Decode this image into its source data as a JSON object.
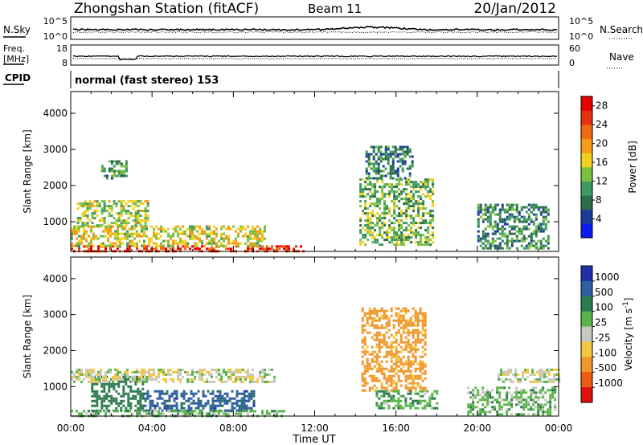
{
  "header": {
    "station": "Zhongshan Station (fitACF)",
    "beam": "Beam 11",
    "date": "20/Jan/2012"
  },
  "top_panels": {
    "nsky_label": "N.Sky",
    "nsearch_label": "N.Search",
    "nsky_ticks": [
      "10^5",
      "10^0"
    ],
    "freq_label_1": "Freq.",
    "freq_label_2": "[MHz]",
    "freq_ticks": [
      "18",
      "8"
    ],
    "nave_label": "Nave",
    "nave_ticks": [
      "60",
      "0"
    ],
    "cpid_label": "CPID",
    "cpid_text": "normal (fast stereo) 153"
  },
  "colors": {
    "power_scale": [
      "#0a1cf0",
      "#1c3c9c",
      "#2d6e4a",
      "#3f9a5f",
      "#7ac142",
      "#f2d020",
      "#f59b15",
      "#ef6a10",
      "#e83010",
      "#e80000"
    ],
    "velocity_scale": [
      "#2030a8",
      "#2f5fa0",
      "#2e7a50",
      "#5ab44a",
      "#c8c8c0",
      "#f2c840",
      "#f0962a",
      "#ec5c14",
      "#e01010"
    ]
  },
  "chart_data": [
    {
      "type": "heatmap",
      "title": "",
      "panel": "power",
      "xlabel": "",
      "ylabel": "Slant Range [km]",
      "x_ticks": [
        "00:00",
        "04:00",
        "08:00",
        "12:00",
        "16:00",
        "20:00",
        "00:00"
      ],
      "xlim_hours": [
        0,
        24
      ],
      "y_ticks": [
        1000,
        2000,
        3000,
        4000
      ],
      "ylim": [
        180,
        4600
      ],
      "colorbar_label": "Power [dB]",
      "colorbar_ticks": [
        4,
        8,
        12,
        16,
        20,
        24,
        28
      ],
      "colorbar_range": [
        0,
        30
      ],
      "regions": [
        {
          "t0": 0.0,
          "t1": 11.5,
          "r0": 180,
          "r1": 350,
          "value": 26
        },
        {
          "t0": 0.0,
          "t1": 9.5,
          "r0": 350,
          "r1": 900,
          "value": 16
        },
        {
          "t0": 0.3,
          "t1": 3.8,
          "r0": 900,
          "r1": 1600,
          "value": 14
        },
        {
          "t0": 1.5,
          "t1": 2.8,
          "r0": 2200,
          "r1": 2700,
          "value": 10
        },
        {
          "t0": 14.2,
          "t1": 17.8,
          "r0": 400,
          "r1": 2200,
          "value": 12
        },
        {
          "t0": 14.5,
          "t1": 16.8,
          "r0": 2200,
          "r1": 3100,
          "value": 8
        },
        {
          "t0": 20.0,
          "t1": 23.5,
          "r0": 300,
          "r1": 1500,
          "value": 9
        }
      ]
    },
    {
      "type": "heatmap",
      "title": "",
      "panel": "velocity",
      "xlabel": "Time UT",
      "ylabel": "Slant Range [km]",
      "x_ticks": [
        "00:00",
        "04:00",
        "08:00",
        "12:00",
        "16:00",
        "20:00",
        "00:00"
      ],
      "xlim_hours": [
        0,
        24
      ],
      "y_ticks": [
        1000,
        2000,
        3000,
        4000
      ],
      "ylim": [
        180,
        4600
      ],
      "colorbar_label": "Velocity [m s^-1]",
      "colorbar_ticks": [
        "1000",
        "500",
        "100",
        "25",
        "-25",
        "-100",
        "-500",
        "-1000"
      ],
      "colorbar_range": [
        -1200,
        1200
      ],
      "regions": [
        {
          "t0": 3.5,
          "t1": 9.0,
          "r0": 300,
          "r1": 900,
          "value": 700
        },
        {
          "t0": 1.0,
          "t1": 3.5,
          "r0": 300,
          "r1": 1300,
          "value": 300
        },
        {
          "t0": 0.0,
          "t1": 10.5,
          "r0": 180,
          "r1": 350,
          "value": 60
        },
        {
          "t0": 0.0,
          "t1": 10.0,
          "r0": 1150,
          "r1": 1500,
          "value": 0
        },
        {
          "t0": 14.3,
          "t1": 17.5,
          "r0": 900,
          "r1": 3200,
          "value": -150
        },
        {
          "t0": 15.0,
          "t1": 18.0,
          "r0": 400,
          "r1": 900,
          "value": 80
        },
        {
          "t0": 19.5,
          "t1": 23.8,
          "r0": 200,
          "r1": 1000,
          "value": 60
        },
        {
          "t0": 21.0,
          "t1": 24.0,
          "r0": 1100,
          "r1": 1500,
          "value": 0
        }
      ]
    }
  ]
}
